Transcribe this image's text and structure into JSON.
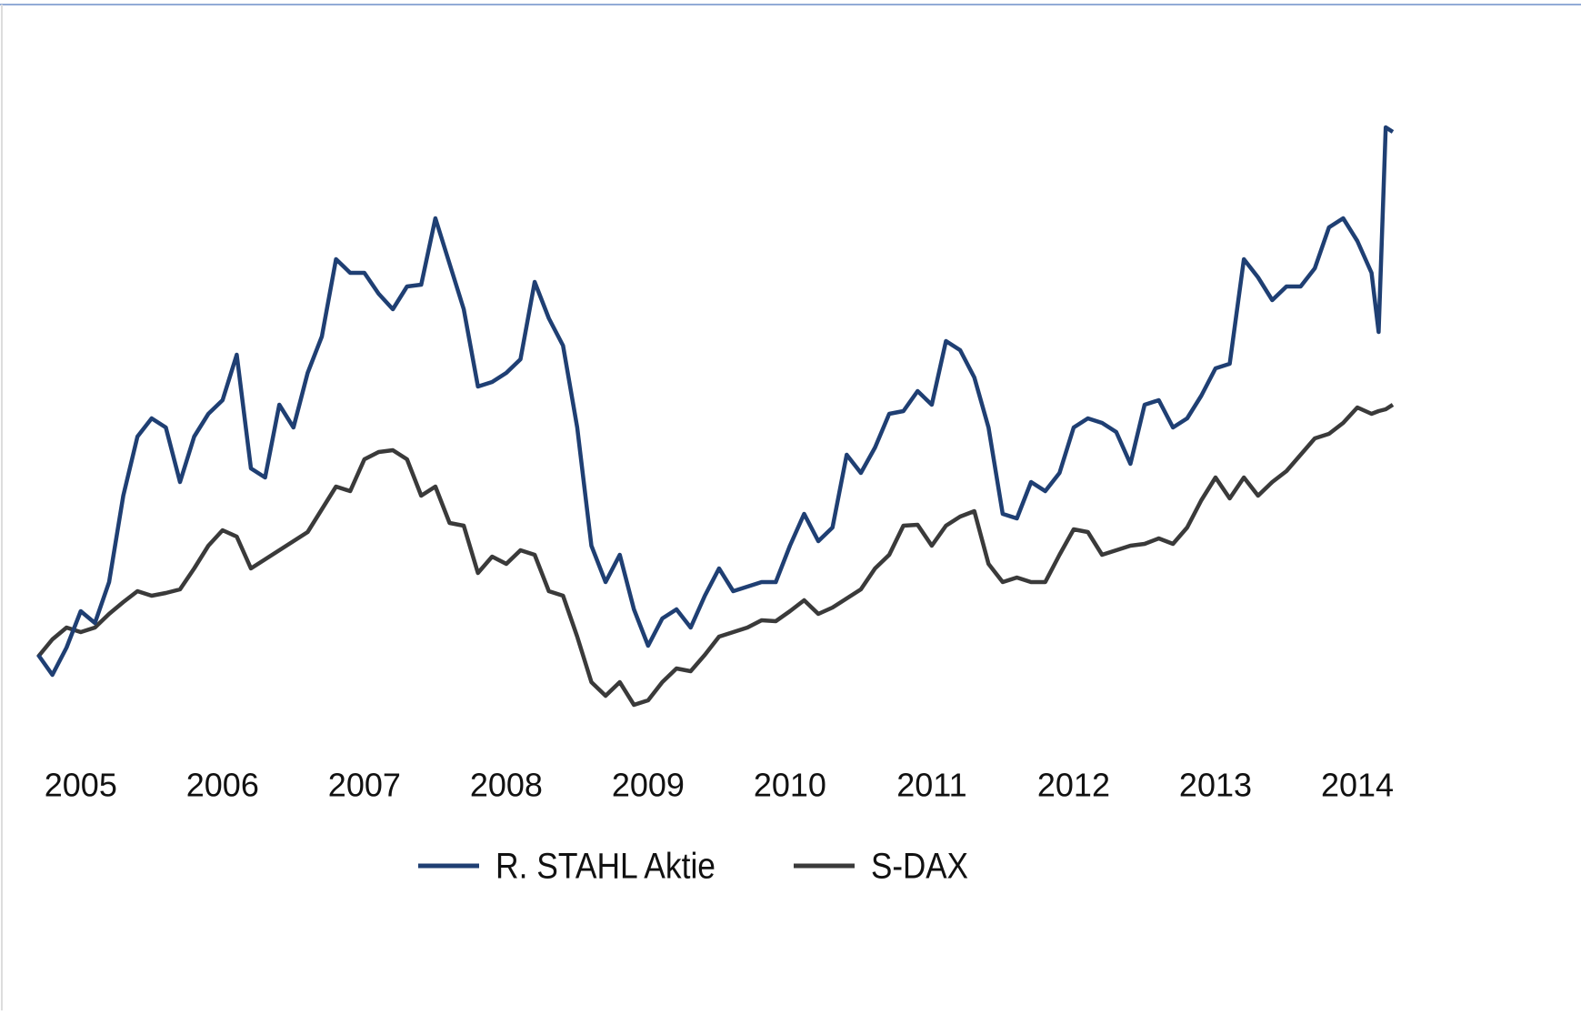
{
  "chart_data": {
    "type": "line",
    "x": [
      2004.7,
      2004.8,
      2004.9,
      2005.0,
      2005.1,
      2005.2,
      2005.3,
      2005.4,
      2005.5,
      2005.6,
      2005.7,
      2005.8,
      2005.9,
      2006.0,
      2006.1,
      2006.2,
      2006.3,
      2006.4,
      2006.5,
      2006.6,
      2006.7,
      2006.8,
      2006.9,
      2007.0,
      2007.1,
      2007.2,
      2007.3,
      2007.4,
      2007.5,
      2007.6,
      2007.7,
      2007.8,
      2007.9,
      2008.0,
      2008.1,
      2008.2,
      2008.3,
      2008.4,
      2008.5,
      2008.6,
      2008.7,
      2008.8,
      2008.9,
      2009.0,
      2009.1,
      2009.2,
      2009.3,
      2009.4,
      2009.5,
      2009.6,
      2009.7,
      2009.8,
      2009.9,
      2010.0,
      2010.1,
      2010.2,
      2010.3,
      2010.4,
      2010.5,
      2010.6,
      2010.7,
      2010.8,
      2010.9,
      2011.0,
      2011.1,
      2011.2,
      2011.3,
      2011.4,
      2011.5,
      2011.6,
      2011.7,
      2011.8,
      2011.9,
      2012.0,
      2012.1,
      2012.2,
      2012.3,
      2012.4,
      2012.5,
      2012.6,
      2012.7,
      2012.8,
      2012.9,
      2013.0,
      2013.1,
      2013.2,
      2013.3,
      2013.4,
      2013.5,
      2013.6,
      2013.7,
      2013.8,
      2013.9,
      2014.0,
      2014.1,
      2014.15,
      2014.2,
      2014.25
    ],
    "series": [
      {
        "name": "R. STAHL Aktie",
        "color": "#1f3f73",
        "values": [
          100,
          78,
          108,
          148,
          135,
          180,
          275,
          340,
          360,
          350,
          290,
          340,
          365,
          380,
          430,
          305,
          295,
          375,
          350,
          410,
          450,
          535,
          520,
          520,
          497,
          480,
          505,
          507,
          580,
          530,
          480,
          395,
          400,
          410,
          425,
          510,
          470,
          440,
          350,
          220,
          180,
          210,
          150,
          110,
          140,
          150,
          130,
          165,
          195,
          170,
          175,
          180,
          180,
          220,
          255,
          225,
          240,
          320,
          300,
          328,
          365,
          368,
          390,
          375,
          445,
          435,
          405,
          350,
          255,
          250,
          290,
          280,
          300,
          350,
          360,
          355,
          345,
          310,
          375,
          380,
          350,
          360,
          385,
          415,
          420,
          535,
          515,
          490,
          505,
          505,
          525,
          570,
          580,
          555,
          520,
          455,
          680,
          675
        ]
      },
      {
        "name": "S-DAX",
        "color": "#3a3a3a",
        "values": [
          98,
          117,
          130,
          125,
          130,
          145,
          158,
          170,
          165,
          168,
          172,
          195,
          220,
          237,
          230,
          195,
          205,
          215,
          225,
          235,
          260,
          285,
          280,
          315,
          323,
          325,
          315,
          275,
          285,
          245,
          242,
          190,
          208,
          200,
          215,
          210,
          170,
          165,
          120,
          70,
          55,
          70,
          45,
          50,
          70,
          85,
          82,
          100,
          120,
          125,
          130,
          138,
          137,
          148,
          160,
          145,
          152,
          162,
          172,
          195,
          210,
          242,
          243,
          220,
          242,
          252,
          258,
          200,
          180,
          185,
          180,
          180,
          210,
          238,
          235,
          210,
          215,
          220,
          222,
          228,
          222,
          240,
          270,
          295,
          272,
          295,
          275,
          290,
          302,
          320,
          338,
          343,
          355,
          372,
          365,
          368,
          370,
          375
        ]
      }
    ],
    "xlim": [
      2004.7,
      2014.25
    ],
    "xticks": [
      2005,
      2006,
      2007,
      2008,
      2009,
      2010,
      2011,
      2012,
      2013,
      2014
    ],
    "ylim": [
      0,
      780
    ]
  }
}
